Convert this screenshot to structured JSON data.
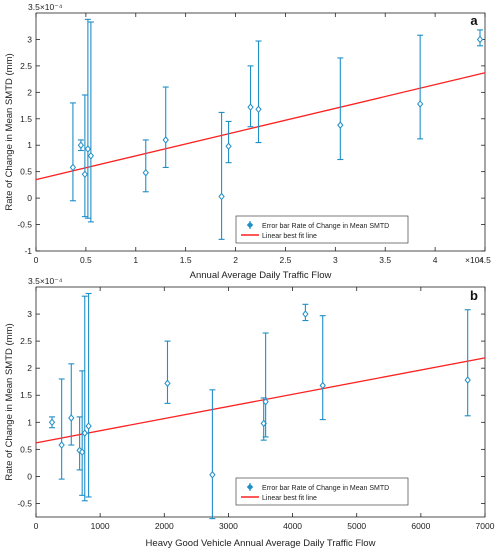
{
  "chart_data": [
    {
      "type": "scatter",
      "panel_label": "a",
      "xlabel": "Annual Average Daily Traffic Flow",
      "ylabel": "Rate of Change in Mean SMTD (mm)",
      "x_exponent_label": "×10⁴",
      "y_exponent_label": "3.5×10⁻⁴",
      "xlim": [
        0,
        45000
      ],
      "ylim": [
        -1.0,
        3.5
      ],
      "y_scale_note": "y values in units of 10^-4 mm",
      "xticks": [
        0,
        5000,
        10000,
        15000,
        20000,
        25000,
        30000,
        35000,
        40000,
        45000
      ],
      "xtick_labels": [
        "0",
        "0.5",
        "1",
        "1.5",
        "2",
        "2.5",
        "3",
        "3.5",
        "4",
        "4.5"
      ],
      "yticks": [
        -1,
        -0.5,
        0,
        0.5,
        1,
        1.5,
        2,
        2.5,
        3
      ],
      "ytick_labels": [
        "-1",
        "-0.5",
        "0",
        "0.5",
        "1",
        "1.5",
        "2",
        "2.5",
        "3"
      ],
      "grid": false,
      "legend_position": "bottom-center",
      "series": [
        {
          "name": "Error bar Rate of Change in Mean SMTD",
          "kind": "errorbar",
          "color": "#1f8fc8",
          "points": [
            {
              "x": 3700,
              "y": 0.58,
              "low": -0.05,
              "high": 1.8
            },
            {
              "x": 4500,
              "y": 1.0,
              "low": 0.9,
              "high": 1.1
            },
            {
              "x": 4900,
              "y": 0.45,
              "low": -0.35,
              "high": 1.95
            },
            {
              "x": 5200,
              "y": 0.93,
              "low": -0.38,
              "high": 3.38
            },
            {
              "x": 5500,
              "y": 0.8,
              "low": -0.45,
              "high": 3.33
            },
            {
              "x": 11000,
              "y": 0.48,
              "low": 0.12,
              "high": 1.1
            },
            {
              "x": 13000,
              "y": 1.1,
              "low": 0.58,
              "high": 2.1
            },
            {
              "x": 18600,
              "y": 0.03,
              "low": -0.78,
              "high": 1.62
            },
            {
              "x": 19300,
              "y": 0.98,
              "low": 0.67,
              "high": 1.45
            },
            {
              "x": 21500,
              "y": 1.72,
              "low": 1.35,
              "high": 2.5
            },
            {
              "x": 22300,
              "y": 1.68,
              "low": 1.05,
              "high": 2.97
            },
            {
              "x": 30500,
              "y": 1.38,
              "low": 0.73,
              "high": 2.65
            },
            {
              "x": 38500,
              "y": 1.78,
              "low": 1.12,
              "high": 3.08
            },
            {
              "x": 44500,
              "y": 3.0,
              "low": 2.88,
              "high": 3.18
            }
          ]
        },
        {
          "name": "Linear best fit line",
          "kind": "line",
          "color": "#ff2020",
          "x": [
            0,
            45000
          ],
          "y": [
            0.35,
            2.37
          ]
        }
      ]
    },
    {
      "type": "scatter",
      "panel_label": "b",
      "xlabel": "Heavy Good Vehicle Annual Average Daily Traffic Flow",
      "ylabel": "Rate of Change in Mean SMTD (mm)",
      "y_exponent_label": "3.5×10⁻⁴",
      "xlim": [
        0,
        7000
      ],
      "ylim": [
        -0.75,
        3.5
      ],
      "y_scale_note": "y values in units of 10^-4 mm",
      "xticks": [
        0,
        1000,
        2000,
        3000,
        4000,
        5000,
        6000,
        7000
      ],
      "xtick_labels": [
        "0",
        "1000",
        "2000",
        "3000",
        "4000",
        "5000",
        "6000",
        "7000"
      ],
      "yticks": [
        -0.5,
        0,
        0.5,
        1,
        1.5,
        2,
        2.5,
        3
      ],
      "ytick_labels": [
        "-0.5",
        "0",
        "0.5",
        "1",
        "1.5",
        "2",
        "2.5",
        "3"
      ],
      "grid": false,
      "legend_position": "bottom-center",
      "series": [
        {
          "name": "Error bar Rate of Change in Mean SMTD",
          "kind": "errorbar",
          "color": "#1f8fc8",
          "points": [
            {
              "x": 250,
              "y": 1.0,
              "low": 0.9,
              "high": 1.1
            },
            {
              "x": 400,
              "y": 0.58,
              "low": -0.05,
              "high": 1.8
            },
            {
              "x": 550,
              "y": 1.08,
              "low": 0.58,
              "high": 2.08
            },
            {
              "x": 680,
              "y": 0.48,
              "low": 0.12,
              "high": 1.1
            },
            {
              "x": 720,
              "y": 0.45,
              "low": -0.35,
              "high": 1.95
            },
            {
              "x": 760,
              "y": 0.8,
              "low": -0.45,
              "high": 3.33
            },
            {
              "x": 820,
              "y": 0.93,
              "low": -0.38,
              "high": 3.38
            },
            {
              "x": 2050,
              "y": 1.72,
              "low": 1.35,
              "high": 2.5
            },
            {
              "x": 2750,
              "y": 0.03,
              "low": -0.78,
              "high": 1.6
            },
            {
              "x": 3550,
              "y": 0.98,
              "low": 0.67,
              "high": 1.45
            },
            {
              "x": 3580,
              "y": 1.38,
              "low": 0.73,
              "high": 2.65
            },
            {
              "x": 4200,
              "y": 3.0,
              "low": 2.88,
              "high": 3.18
            },
            {
              "x": 4470,
              "y": 1.68,
              "low": 1.05,
              "high": 2.97
            },
            {
              "x": 6730,
              "y": 1.78,
              "low": 1.12,
              "high": 3.08
            }
          ]
        },
        {
          "name": "Linear best fit line",
          "kind": "line",
          "color": "#ff2020",
          "x": [
            0,
            7000
          ],
          "y": [
            0.62,
            2.19
          ]
        }
      ]
    }
  ]
}
